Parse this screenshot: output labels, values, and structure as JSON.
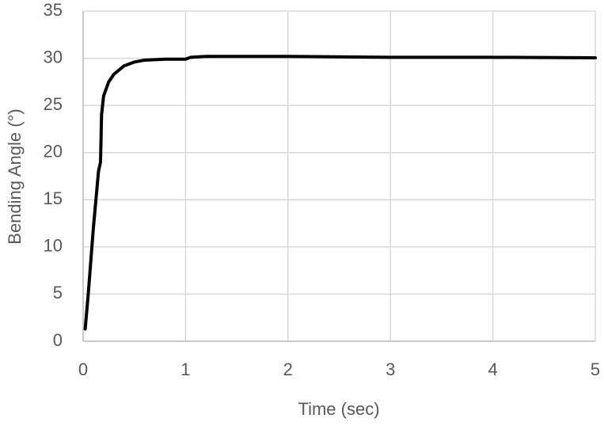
{
  "chart_data": {
    "type": "line",
    "xlabel": "Time (sec)",
    "ylabel": "Bending Angle (°)",
    "series": [
      {
        "color": "#000000",
        "x": [
          0.02,
          0.05,
          0.1,
          0.15,
          0.17,
          0.18,
          0.2,
          0.25,
          0.3,
          0.4,
          0.5,
          0.6,
          0.8,
          1.0,
          1.05,
          1.2,
          1.5,
          2,
          3,
          4,
          5
        ],
        "values": [
          1.3,
          5,
          12,
          18,
          19,
          24,
          26,
          27.5,
          28.3,
          29.2,
          29.6,
          29.8,
          29.9,
          29.9,
          30.1,
          30.2,
          30.2,
          30.2,
          30.1,
          30.1,
          30.05
        ]
      }
    ],
    "xlim": [
      0,
      5
    ],
    "xticks": [
      0,
      1,
      2,
      3,
      4,
      5
    ],
    "ylim": [
      0,
      35
    ],
    "yticks": [
      0,
      5,
      10,
      15,
      20,
      25,
      30,
      35
    ],
    "grid": true
  }
}
